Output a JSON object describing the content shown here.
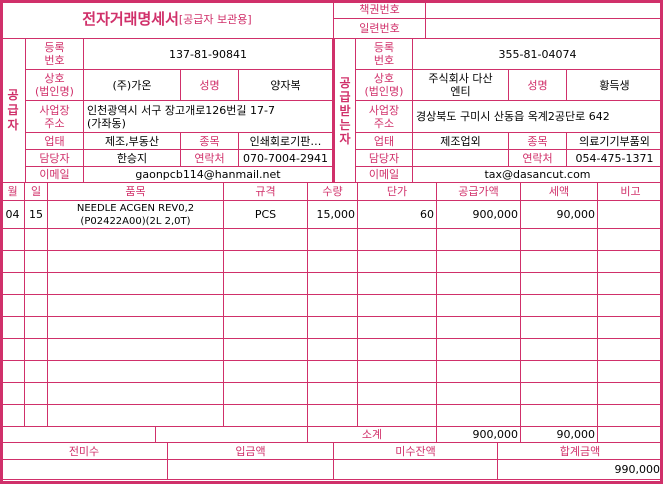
{
  "title": "전자거래명세서",
  "title_sub": "[공급자 보관용]",
  "book_no_label": "책권번호",
  "serial_no_label": "일련번호",
  "labels": {
    "reg_no": "등록\n번호",
    "company": "상호\n(법인명)",
    "name": "성명",
    "address": "사업장\n주소",
    "biz_type": "업태",
    "item": "종목",
    "manager": "담당자",
    "contact": "연락처",
    "email": "이메일"
  },
  "supplier": {
    "side_label": "공급자",
    "reg_no": "137-81-90841",
    "company": "(주)가온",
    "name": "양자복",
    "address": "인천광역시 서구 장고개로126번길 17-7\n(가좌동)",
    "biz_type": "제조,부동산",
    "item": "인쇄회로기판…",
    "manager": "한승지",
    "contact": "070-7004-2941",
    "email": "gaonpcb114@hanmail.net"
  },
  "receiver": {
    "side_label": "공급받는자",
    "reg_no": "355-81-04074",
    "company": "주식회사 다산\n엔티",
    "name": "황득생",
    "address": "경상북도 구미시 산동읍 옥계2공단로 642",
    "biz_type": "제조업외",
    "item": "의료기기부품외",
    "manager": "",
    "contact": "054-475-1371",
    "email": "tax@dasancut.com"
  },
  "columns": [
    "월",
    "일",
    "품목",
    "규격",
    "수량",
    "단가",
    "공급가액",
    "세액",
    "비고"
  ],
  "rows": [
    {
      "month": "04",
      "day": "15",
      "item": "NEEDLE ACGEN REV0,2\n(P02422A00)(2L 2,0T)",
      "spec": "PCS",
      "qty": "15,000",
      "price": "60",
      "supply": "900,000",
      "tax": "90,000",
      "note": ""
    }
  ],
  "subtotal": {
    "label": "소계",
    "supply": "900,000",
    "tax": "90,000"
  },
  "footer": {
    "labels": [
      "전미수",
      "입금액",
      "미수잔액",
      "합계금액"
    ],
    "values": [
      "",
      "",
      "",
      "990,000"
    ]
  },
  "colors": {
    "accent": "#d0306a"
  }
}
